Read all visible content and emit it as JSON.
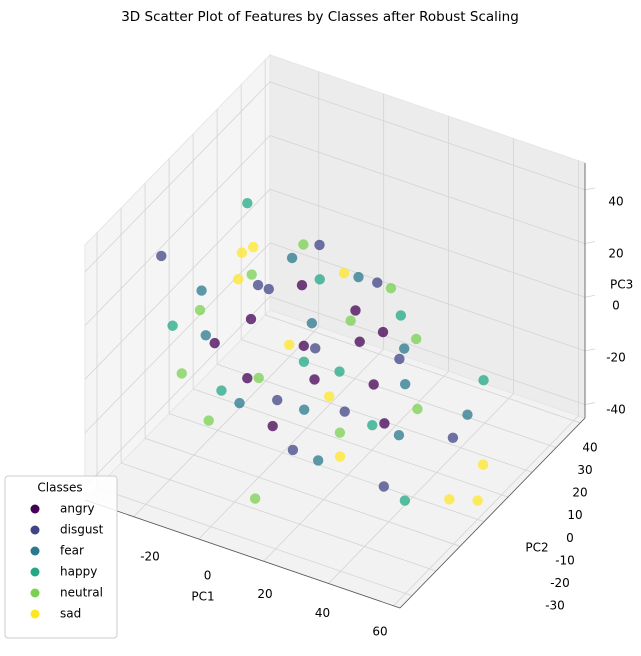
{
  "chart_data": {
    "type": "scatter3d",
    "title": "3D Scatter Plot of Features by Classes after Robust Scaling",
    "xlabel": "PC1",
    "ylabel": "PC2",
    "zlabel": "PC3",
    "xlim": [
      -35,
      62
    ],
    "xticks": [
      -20,
      0,
      20,
      40,
      60
    ],
    "ylim": [
      -35,
      42
    ],
    "yticks": [
      -30,
      -20,
      -10,
      0,
      10,
      20,
      30,
      40
    ],
    "zlim": [
      -45,
      50
    ],
    "zticks": [
      -40,
      -20,
      0,
      20,
      40
    ],
    "grid": true,
    "legend_title": "Classes",
    "legend_position": "lower left",
    "series": [
      {
        "name": "angry",
        "color": "#440154",
        "x": [
          5,
          12,
          20,
          -5,
          28,
          15,
          -12,
          35,
          8,
          22,
          -18,
          0
        ],
        "y": [
          2,
          -3,
          5,
          -8,
          0,
          10,
          3,
          -5,
          -15,
          12,
          -4,
          8
        ],
        "z": [
          -5,
          -10,
          0,
          -12,
          -8,
          5,
          -3,
          -15,
          -18,
          -2,
          -8,
          10
        ]
      },
      {
        "name": "disgust",
        "color": "#414487",
        "x": [
          -30,
          10,
          25,
          -8,
          40,
          18,
          2,
          30,
          -15,
          45,
          12,
          -2
        ],
        "y": [
          -10,
          0,
          -8,
          5,
          -12,
          15,
          -5,
          8,
          10,
          10,
          -12,
          18
        ],
        "z": [
          25,
          -2,
          -12,
          8,
          -30,
          12,
          -20,
          -5,
          2,
          -30,
          -28,
          15
        ]
      },
      {
        "name": "fear",
        "color": "#2a788e",
        "x": [
          -20,
          6,
          30,
          14,
          -6,
          38,
          48,
          22,
          -25,
          10,
          0,
          34
        ],
        "y": [
          -5,
          4,
          10,
          -10,
          12,
          -3,
          12,
          -15,
          0,
          18,
          -18,
          5
        ],
        "z": [
          -5,
          2,
          -3,
          -14,
          14,
          -20,
          -22,
          -25,
          5,
          8,
          -10,
          -10
        ]
      },
      {
        "name": "happy",
        "color": "#22a884",
        "x": [
          -22,
          45,
          8,
          -10,
          26,
          16,
          50,
          -28,
          4,
          32
        ],
        "y": [
          15,
          -10,
          -2,
          -12,
          14,
          2,
          16,
          -8,
          10,
          -6
        ],
        "z": [
          25,
          -35,
          -6,
          -15,
          4,
          -10,
          -12,
          -2,
          12,
          -16
        ]
      },
      {
        "name": "neutral",
        "color": "#7ad151",
        "x": [
          -24,
          -14,
          0,
          15,
          25,
          10,
          -20,
          20,
          40,
          -8,
          30,
          -4
        ],
        "y": [
          -2,
          6,
          -10,
          8,
          -10,
          -25,
          -15,
          18,
          2,
          -20,
          15,
          14
        ],
        "z": [
          0,
          10,
          -8,
          3,
          -18,
          -35,
          -10,
          8,
          -14,
          -18,
          -4,
          18
        ]
      },
      {
        "name": "sad",
        "color": "#fde725",
        "x": [
          -15,
          2,
          18,
          55,
          60,
          58,
          -10,
          10,
          28,
          -20
        ],
        "y": [
          8,
          0,
          -5,
          -5,
          0,
          5,
          -5,
          12,
          -14,
          10
        ],
        "z": [
          18,
          -4,
          -12,
          -35,
          -38,
          -30,
          20,
          15,
          -22,
          12
        ]
      }
    ]
  }
}
